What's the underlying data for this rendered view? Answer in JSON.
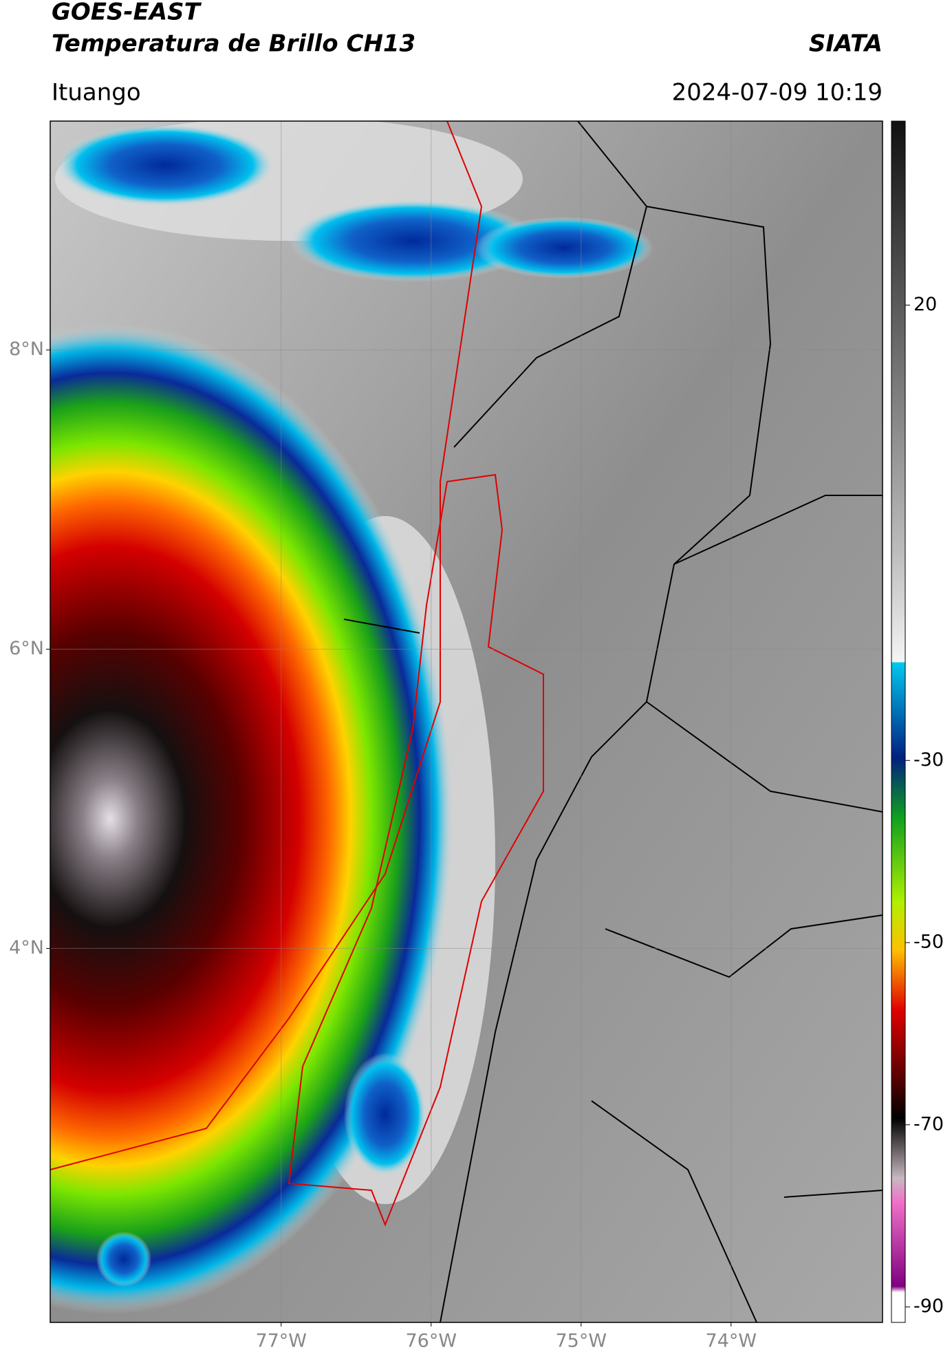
{
  "header": {
    "title": "GOES-EAST",
    "subtitle": "Temperatura de Brillo CH13",
    "source": "SIATA",
    "location": "Ituango",
    "datetime": "2024-07-09 10:19"
  },
  "map": {
    "lat_lim": [
      1.5,
      9.53
    ],
    "lon_lim": [
      -78.54,
      -72.99
    ],
    "lat_ticks": [
      {
        "value": 8,
        "label": "8°N"
      },
      {
        "value": 6,
        "label": "6°N"
      },
      {
        "value": 4,
        "label": "4°N"
      }
    ],
    "lon_ticks": [
      {
        "value": -77,
        "label": "77°W"
      },
      {
        "value": -76,
        "label": "76°W"
      },
      {
        "value": -75,
        "label": "75°W"
      },
      {
        "value": -74,
        "label": "74°W"
      }
    ]
  },
  "colorbar": {
    "lim": [
      -91.7,
      40.2
    ],
    "ticks": [
      20,
      -30,
      -50,
      -70,
      -90
    ]
  }
}
